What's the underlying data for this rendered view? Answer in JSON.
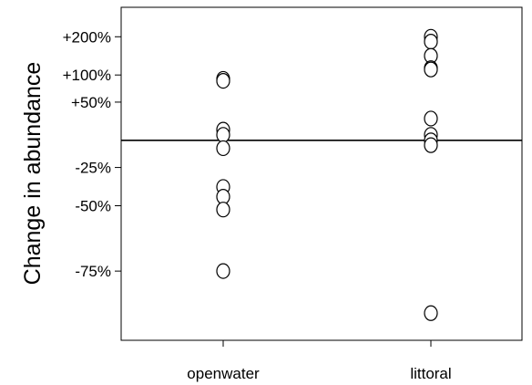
{
  "chart_data": {
    "type": "scatter",
    "title": "",
    "xlabel": "",
    "ylabel": "Change in abundance",
    "y_scale": "log-ratio",
    "categories": [
      "openwater",
      "littoral"
    ],
    "y_ticks": [
      {
        "label": "+200%",
        "value": 2.0
      },
      {
        "label": "+100%",
        "value": 1.0
      },
      {
        "label": "+50%",
        "value": 0.5
      },
      {
        "label": "-25%",
        "value": -0.25
      },
      {
        "label": "-50%",
        "value": -0.5
      },
      {
        "label": "-75%",
        "value": -0.75
      }
    ],
    "reference_line": 0,
    "ylim": [
      -0.88,
      3.1
    ],
    "grid": false,
    "series": [
      {
        "category": "openwater",
        "values": [
          0.92,
          0.88,
          0.12,
          0.06,
          -0.08,
          -0.39,
          -0.45,
          -0.52,
          -0.75
        ]
      },
      {
        "category": "littoral",
        "values": [
          2.0,
          1.85,
          1.45,
          1.15,
          1.12,
          0.26,
          0.06,
          0.0,
          -0.05,
          -0.84
        ]
      }
    ]
  }
}
